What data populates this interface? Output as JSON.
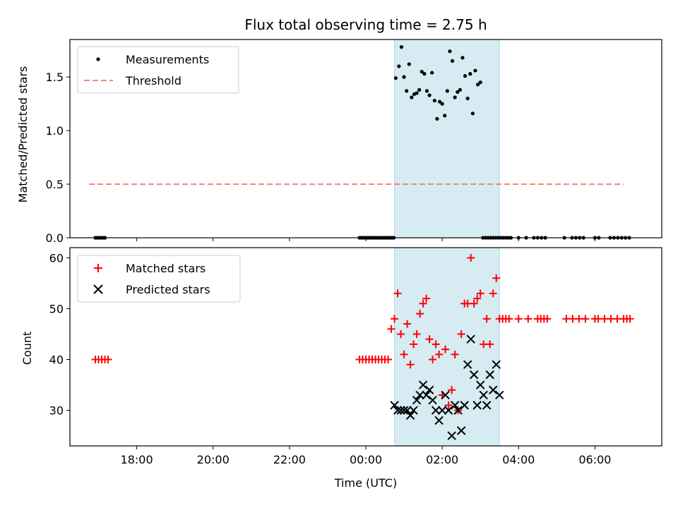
{
  "chart_data": [
    {
      "type": "scatter",
      "title": "Flux total observing time = 2.75 h",
      "ylabel": "Matched/Predicted stars",
      "ylim": [
        0,
        1.85
      ],
      "yticks": [
        "0.0",
        "0.5",
        "1.0",
        "1.5"
      ],
      "shaded_interval": [
        "00:45",
        "03:30"
      ],
      "shade_color": "#add8e6",
      "legend": {
        "placement": "top-left",
        "entries": [
          "Measurements",
          "Threshold"
        ]
      },
      "threshold": {
        "name": "Threshold",
        "value": 0.5,
        "x_start": "16:45",
        "x_end": "06:45",
        "color": "#ff8080",
        "style": "dashed"
      },
      "series": [
        {
          "name": "Measurements",
          "color": "#000000",
          "marker": "dot",
          "x": [
            "16:55",
            "16:58",
            "17:01",
            "17:04",
            "17:07",
            "17:10",
            "23:50",
            "23:53",
            "23:56",
            "23:59",
            "00:02",
            "00:05",
            "00:08",
            "00:11",
            "00:14",
            "00:17",
            "00:20",
            "00:23",
            "00:26",
            "00:29",
            "00:32",
            "00:35",
            "00:38",
            "00:41",
            "00:44",
            "00:47",
            "00:52",
            "00:56",
            "01:00",
            "01:04",
            "01:08",
            "01:12",
            "01:16",
            "01:20",
            "01:24",
            "01:28",
            "01:32",
            "01:36",
            "01:40",
            "01:44",
            "01:48",
            "01:52",
            "01:56",
            "02:00",
            "02:04",
            "02:08",
            "02:12",
            "02:16",
            "02:20",
            "02:24",
            "02:28",
            "02:32",
            "02:36",
            "02:40",
            "02:44",
            "02:48",
            "02:52",
            "02:56",
            "03:00",
            "03:04",
            "03:08",
            "03:12",
            "03:16",
            "03:20",
            "03:24",
            "03:28",
            "03:32",
            "03:36",
            "03:40",
            "03:44",
            "03:48",
            "04:00",
            "04:12",
            "04:24",
            "04:30",
            "04:36",
            "04:42",
            "05:12",
            "05:24",
            "05:30",
            "05:36",
            "05:42",
            "06:00",
            "06:06",
            "06:24",
            "06:30",
            "06:36",
            "06:42",
            "06:48",
            "06:54"
          ],
          "y": [
            0,
            0,
            0,
            0,
            0,
            0,
            0,
            0,
            0,
            0,
            0,
            0,
            0,
            0,
            0,
            0,
            0,
            0,
            0,
            0,
            0,
            0,
            0,
            0,
            0,
            1.49,
            1.6,
            1.78,
            1.5,
            1.37,
            1.62,
            1.31,
            1.34,
            1.35,
            1.38,
            1.55,
            1.53,
            1.37,
            1.33,
            1.54,
            1.28,
            1.11,
            1.27,
            1.25,
            1.14,
            1.37,
            1.74,
            1.65,
            1.31,
            1.36,
            1.38,
            1.68,
            1.51,
            1.3,
            1.53,
            1.16,
            1.56,
            1.43,
            1.45,
            0,
            0,
            0,
            0,
            0,
            0,
            0,
            0,
            0,
            0,
            0,
            0,
            0,
            0,
            0,
            0,
            0,
            0,
            0,
            0,
            0,
            0,
            0,
            0,
            0,
            0,
            0,
            0,
            0,
            0,
            0
          ]
        }
      ]
    },
    {
      "type": "scatter",
      "xlabel": "Time (UTC)",
      "ylabel": "Count",
      "ylim": [
        23,
        62
      ],
      "yticks": [
        "30",
        "40",
        "50",
        "60"
      ],
      "xlim": [
        "16:15",
        "07:45"
      ],
      "xticks": [
        "18:00",
        "20:00",
        "22:00",
        "00:00",
        "02:00",
        "04:00",
        "06:00"
      ],
      "shaded_interval": [
        "00:45",
        "03:30"
      ],
      "legend": {
        "placement": "top-left",
        "entries": [
          "Matched stars",
          "Predicted stars"
        ]
      },
      "series": [
        {
          "name": "Matched stars",
          "color": "#ff0000",
          "marker": "plus",
          "x": [
            "16:55",
            "17:00",
            "17:05",
            "17:10",
            "17:15",
            "23:50",
            "23:55",
            "00:00",
            "00:05",
            "00:10",
            "00:15",
            "00:20",
            "00:25",
            "00:30",
            "00:35",
            "00:40",
            "00:45",
            "00:50",
            "00:55",
            "01:00",
            "01:05",
            "01:10",
            "01:15",
            "01:20",
            "01:25",
            "01:30",
            "01:35",
            "01:40",
            "01:45",
            "01:50",
            "01:55",
            "02:00",
            "02:05",
            "02:10",
            "02:15",
            "02:20",
            "02:25",
            "02:30",
            "02:35",
            "02:40",
            "02:45",
            "02:50",
            "02:55",
            "03:00",
            "03:05",
            "03:10",
            "03:15",
            "03:20",
            "03:25",
            "03:30",
            "03:35",
            "03:40",
            "03:45",
            "04:00",
            "04:15",
            "04:30",
            "04:35",
            "04:40",
            "04:45",
            "05:15",
            "05:25",
            "05:35",
            "05:45",
            "06:00",
            "06:05",
            "06:15",
            "06:25",
            "06:35",
            "06:45",
            "06:50",
            "06:55"
          ],
          "y": [
            40,
            40,
            40,
            40,
            40,
            40,
            40,
            40,
            40,
            40,
            40,
            40,
            40,
            40,
            40,
            46,
            48,
            53,
            45,
            41,
            47,
            39,
            43,
            45,
            49,
            51,
            52,
            44,
            40,
            43,
            41,
            33,
            42,
            31,
            34,
            41,
            30,
            45,
            51,
            51,
            60,
            51,
            52,
            53,
            43,
            48,
            43,
            53,
            56,
            48,
            48,
            48,
            48,
            48,
            48,
            48,
            48,
            48,
            48,
            48,
            48,
            48,
            48,
            48,
            48,
            48,
            48,
            48,
            48,
            48,
            48
          ]
        },
        {
          "name": "Predicted stars",
          "color": "#000000",
          "marker": "x",
          "x": [
            "00:45",
            "00:50",
            "00:55",
            "01:00",
            "01:05",
            "01:10",
            "01:15",
            "01:20",
            "01:25",
            "01:30",
            "01:35",
            "01:40",
            "01:45",
            "01:50",
            "01:55",
            "02:00",
            "02:05",
            "02:10",
            "02:15",
            "02:20",
            "02:25",
            "02:30",
            "02:35",
            "02:40",
            "02:45",
            "02:50",
            "02:55",
            "03:00",
            "03:05",
            "03:10",
            "03:15",
            "03:20",
            "03:25",
            "03:30"
          ],
          "y": [
            31,
            30,
            30,
            30,
            30,
            29,
            30,
            32,
            33,
            35,
            33,
            34,
            32,
            30,
            28,
            30,
            33,
            30,
            25,
            31,
            30,
            26,
            31,
            39,
            44,
            37,
            31,
            35,
            33,
            31,
            37,
            34,
            39,
            33
          ]
        }
      ]
    }
  ]
}
